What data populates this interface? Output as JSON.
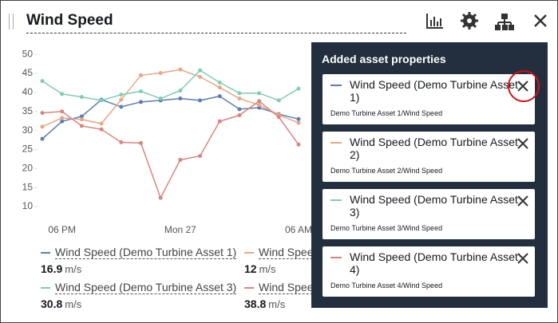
{
  "widget": {
    "title": "Wind Speed"
  },
  "chart": {
    "type": "line",
    "categories": [
      null,
      "06 PM",
      null,
      null,
      null,
      null,
      null,
      "Mon 27",
      null,
      null,
      null,
      null,
      null,
      "06 AM"
    ],
    "ylim": [
      7.5,
      51.5
    ],
    "yticks": [
      10,
      15,
      20,
      25,
      30,
      35,
      40,
      45,
      50
    ],
    "series": [
      {
        "name": "Wind Speed (Demo Turbine Asset 1)",
        "color": "#5b7db3",
        "values": [
          27.8,
          32.4,
          33.7,
          38.1,
          36.2,
          37.5,
          37.9,
          38.4,
          37.9,
          39,
          35.6,
          36,
          34.3,
          33
        ]
      },
      {
        "name": "Wind Speed (Demo Turbine Asset 2)",
        "color": "#e8a784",
        "values": [
          31,
          33.3,
          32.9,
          31.8,
          38.1,
          44.5,
          45.1,
          46,
          44.1,
          41.3,
          38.4,
          36.7,
          34.1,
          32
        ]
      },
      {
        "name": "Wind Speed (Demo Turbine Asset 3)",
        "color": "#7fcdb2",
        "values": [
          43,
          39.6,
          38.8,
          37.9,
          39.4,
          40.3,
          38.4,
          40.5,
          45.8,
          42.6,
          39.8,
          39.8,
          37.9,
          41
        ]
      },
      {
        "name": "Wind Speed (Demo Turbine Asset 4)",
        "color": "#d9857e",
        "values": [
          34.6,
          35,
          31.2,
          30.3,
          26.9,
          26.7,
          12.3,
          22.3,
          23.3,
          32.4,
          34,
          37.7,
          33.5,
          26.3
        ]
      }
    ]
  },
  "legend": [
    {
      "name": "Wind Speed (Demo Turbine Asset 1)",
      "value": "16.9",
      "unit": "m/s"
    },
    {
      "name": "Wind Speed (Demo Turbine Asset 2)",
      "value": "12",
      "unit": "m/s"
    },
    {
      "name": "Wind Speed (Demo Turbine Asset 3)",
      "value": "30.8",
      "unit": "m/s"
    },
    {
      "name": "Wind Speed (Demo Turbine Asset 4)",
      "value": "38.8",
      "unit": "m/s"
    }
  ],
  "panel": {
    "title": "Added asset properties",
    "items": [
      {
        "name": "Wind Speed (Demo Turbine Asset 1)",
        "path": "Demo Turbine Asset 1/Wind Speed",
        "color": "#5b7db3"
      },
      {
        "name": "Wind Speed (Demo Turbine Asset 2)",
        "path": "Demo Turbine Asset 2/Wind Speed",
        "color": "#e8a784"
      },
      {
        "name": "Wind Speed (Demo Turbine Asset 3)",
        "path": "Demo Turbine Asset 3/Wind Speed",
        "color": "#7fcdb2"
      },
      {
        "name": "Wind Speed (Demo Turbine Asset 4)",
        "path": "Demo Turbine Asset 4/Wind Speed",
        "color": "#d9857e"
      }
    ]
  }
}
